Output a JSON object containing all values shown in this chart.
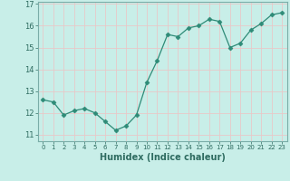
{
  "x": [
    0,
    1,
    2,
    3,
    4,
    5,
    6,
    7,
    8,
    9,
    10,
    11,
    12,
    13,
    14,
    15,
    16,
    17,
    18,
    19,
    20,
    21,
    22,
    23
  ],
  "y": [
    12.6,
    12.5,
    11.9,
    12.1,
    12.2,
    12.0,
    11.6,
    11.2,
    11.4,
    11.9,
    13.4,
    14.4,
    15.6,
    15.5,
    15.9,
    16.0,
    16.3,
    16.2,
    15.0,
    15.2,
    15.8,
    16.1,
    16.5,
    16.6
  ],
  "line_color": "#2e8b77",
  "marker": "D",
  "marker_size": 2.5,
  "bg_color": "#c8eee8",
  "grid_color": "#b0ddd8",
  "xlabel": "Humidex (Indice chaleur)",
  "ylabel_ticks": [
    11,
    12,
    13,
    14,
    15,
    16,
    17
  ],
  "xlim": [
    -0.5,
    23.5
  ],
  "ylim": [
    10.7,
    17.1
  ]
}
